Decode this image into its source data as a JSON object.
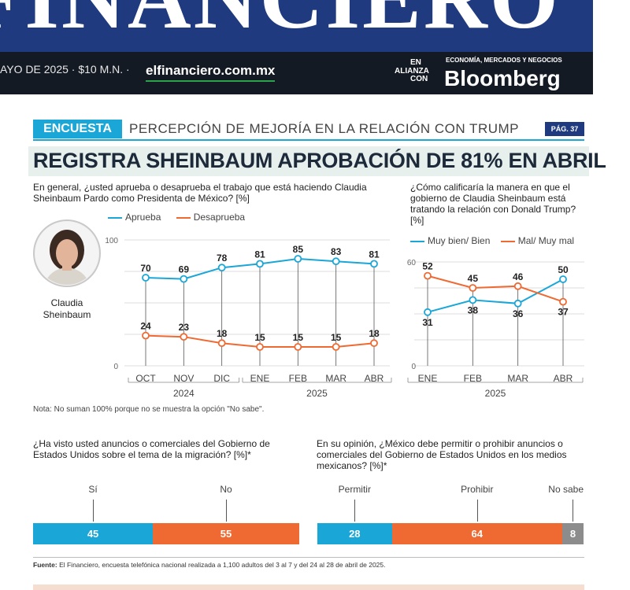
{
  "masthead": {
    "logo": "FINANCIERO",
    "date_price": "AYO DE 2025 · $10 M.N. ·",
    "url": "elfinanciero.com.mx",
    "alliance": [
      "EN",
      "ALIANZA",
      "CON"
    ],
    "bloomberg_tagline": "ECONOMÍA, MERCADOS Y NEGOCIOS",
    "bloomberg_name": "Bloomberg"
  },
  "header": {
    "section": "ENCUESTA",
    "topic": "PERCEPCIÓN DE MEJORÍA EN LA RELACIÓN CON TRUMP",
    "page": "PÁG. 37",
    "headline": "REGISTRA SHEINBAUM APROBACIÓN DE 81% EN ABRIL"
  },
  "photo_caption": [
    "Claudia",
    "Sheinbaum"
  ],
  "note": "Nota: No suman 100% porque no se muestra la opción \"No sabe\".",
  "source_label": "Fuente:",
  "source_text": " El Financiero, encuesta telefónica nacional realizada a 1,100 adultos del 3 al 7 y del 24 al 28 de abril de 2025.",
  "colors": {
    "blue": "#1aa7d8",
    "orange": "#ef6a32",
    "gray": "#8c8c8c",
    "navy": "#1f3a7e"
  },
  "chart_data": [
    {
      "type": "line",
      "title": "En general, ¿usted aprueba o desaprueba el trabajo que está haciendo Claudia Sheinbaum Pardo como Presidenta de México? [%]",
      "categories": [
        "OCT",
        "NOV",
        "DIC",
        "ENE",
        "FEB",
        "MAR",
        "ABR"
      ],
      "year_labels": [
        "2024",
        "2025"
      ],
      "ylim": [
        0,
        100
      ],
      "yticks": [
        "0",
        "100"
      ],
      "legend": "top",
      "grid": true,
      "series": [
        {
          "name": "Aprueba",
          "color": "#1aa7d8",
          "values": [
            70,
            69,
            78,
            81,
            85,
            83,
            81
          ]
        },
        {
          "name": "Desaprueba",
          "color": "#ef6a32",
          "values": [
            24,
            23,
            18,
            15,
            15,
            15,
            18
          ]
        }
      ]
    },
    {
      "type": "line",
      "title": "¿Cómo calificaría la manera en que el gobierno de Claudia Sheinbaum está tratando la relación con Donald Trump? [%]",
      "categories": [
        "ENE",
        "FEB",
        "MAR",
        "ABR"
      ],
      "year_labels": [
        "2025"
      ],
      "ylim": [
        0,
        60
      ],
      "yticks": [
        "0",
        "60"
      ],
      "legend": "top",
      "grid": true,
      "series": [
        {
          "name": "Muy bien/ Bien",
          "color": "#1aa7d8",
          "values": [
            31,
            38,
            36,
            50
          ]
        },
        {
          "name": "Mal/ Muy mal",
          "color": "#ef6a32",
          "values": [
            52,
            45,
            46,
            37
          ]
        }
      ]
    },
    {
      "type": "bar",
      "orientation": "horizontal-stacked",
      "title": "¿Ha visto usted anuncios o comerciales del Gobierno de Estados Unidos sobre el tema de la migración? [%]*",
      "categories": [
        "Sí",
        "No"
      ],
      "values": [
        45,
        55
      ],
      "colors": [
        "#1aa7d8",
        "#ef6a32"
      ]
    },
    {
      "type": "bar",
      "orientation": "horizontal-stacked",
      "title": "En su opinión, ¿México debe permitir o prohibir anuncios o comerciales del Gobierno de Estados Unidos en los medios mexicanos? [%]*",
      "categories": [
        "Permitir",
        "Prohibir",
        "No sabe"
      ],
      "values": [
        28,
        64,
        8
      ],
      "colors": [
        "#1aa7d8",
        "#ef6a32",
        "#8c8c8c"
      ]
    }
  ]
}
